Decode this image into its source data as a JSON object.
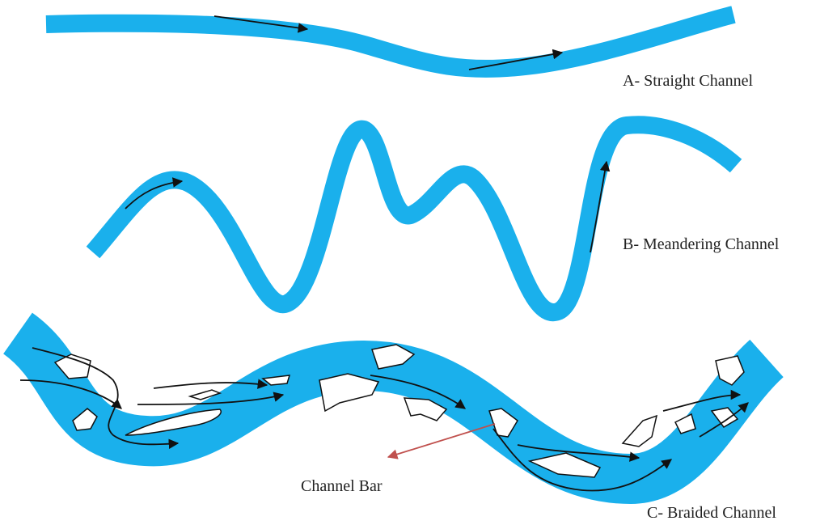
{
  "channels": [
    {
      "label": "A- Straight Channel"
    },
    {
      "label": "B- Meandering Channel"
    },
    {
      "label": "C- Braided Channel"
    }
  ],
  "annotation": "Channel Bar"
}
